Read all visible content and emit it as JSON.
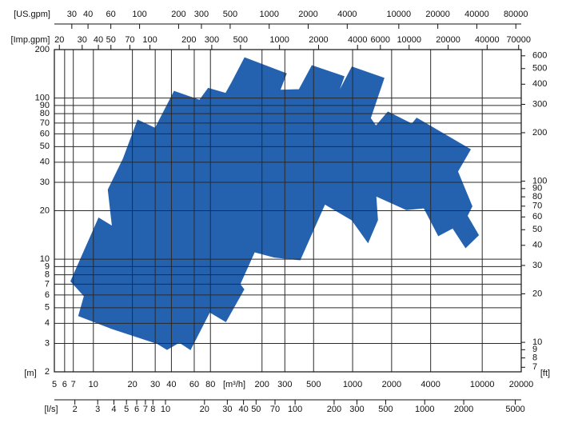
{
  "chart_data": {
    "type": "area",
    "log_scale": true,
    "grid": true,
    "color": "#2462b0",
    "x": [
      6.7,
      11,
      14,
      13,
      17,
      22,
      30,
      42,
      66,
      77,
      105,
      117,
      147,
      308,
      275,
      387,
      486,
      858,
      765,
      989,
      1746,
      1371,
      1513,
      1875,
      2871,
      3127,
      8110,
      6455,
      8337,
      7656,
      9349,
      7444,
      5929,
      4590,
      3556,
      2600,
      1513,
      1559,
      1314,
      989,
      610,
      393,
      249,
      175,
      135,
      145,
      105,
      79,
      56,
      46,
      37,
      31,
      14,
      7.7,
      8.5
    ],
    "y": [
      7.3,
      18,
      16,
      27,
      42,
      73,
      65,
      110,
      97,
      115,
      107,
      125,
      178,
      142,
      112,
      113,
      159,
      136,
      105,
      156,
      133,
      75,
      67,
      82,
      69,
      75,
      48,
      35,
      21.3,
      18.6,
      14.1,
      11.8,
      15.6,
      14,
      20.8,
      20.3,
      24.7,
      17.5,
      12.7,
      17.5,
      22,
      9.9,
      10.3,
      11.1,
      7,
      6.5,
      4.1,
      4.7,
      2.75,
      3.05,
      2.75,
      3,
      3.7,
      4.45,
      5.9
    ],
    "xlabel": "[m³/h]",
    "xlim": [
      5,
      20000
    ],
    "xticks": [
      5,
      6,
      7,
      10,
      20,
      30,
      40,
      60,
      80,
      200,
      300,
      500,
      1000,
      2000,
      4000,
      10000,
      20000
    ],
    "ylabel": "[m]",
    "ylim": [
      2,
      200
    ],
    "yticks": [
      2,
      3,
      4,
      5,
      6,
      7,
      8,
      9,
      10,
      20,
      30,
      40,
      50,
      60,
      70,
      80,
      90,
      100,
      200
    ],
    "y2label": "[ft]",
    "y2lim": [
      6.56,
      656
    ],
    "y2ticks": [
      7,
      8,
      9,
      10,
      20,
      30,
      40,
      50,
      60,
      70,
      80,
      90,
      100,
      200,
      300,
      400,
      500,
      600
    ],
    "extra_x_axes": [
      {
        "label": "[US.gpm]",
        "position": "top-outer",
        "lim": [
          22,
          88060
        ],
        "ticks": [
          30,
          40,
          60,
          100,
          200,
          300,
          500,
          1000,
          2000,
          4000,
          10000,
          20000,
          40000,
          80000
        ]
      },
      {
        "label": "[Imp.gpm]",
        "position": "top-inner",
        "lim": [
          18.3,
          73320
        ],
        "ticks": [
          20,
          30,
          40,
          50,
          70,
          100,
          200,
          300,
          500,
          1000,
          2000,
          4000,
          6000,
          10000,
          20000,
          40000,
          70000
        ]
      },
      {
        "label": "[l/s]",
        "position": "bottom-outer",
        "lim": [
          1.389,
          5556
        ],
        "ticks": [
          2,
          3,
          4,
          5,
          6,
          7,
          8,
          10,
          20,
          30,
          40,
          50,
          70,
          100,
          200,
          300,
          500,
          1000,
          2000,
          5000
        ]
      }
    ]
  }
}
